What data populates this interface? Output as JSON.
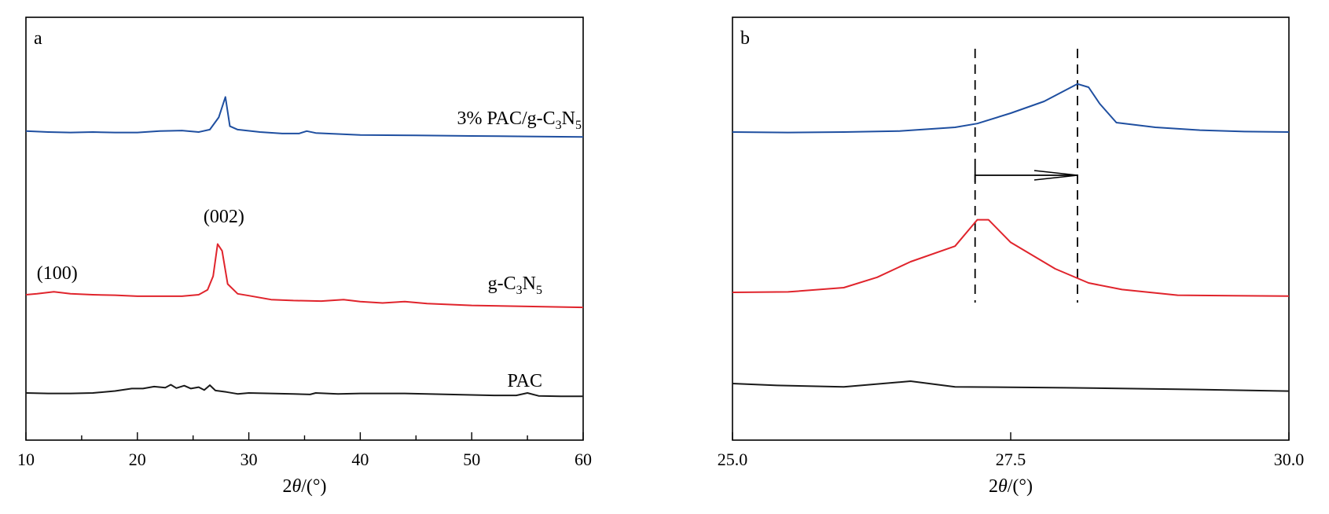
{
  "chart_data": [
    {
      "type": "line",
      "panel_label": "a",
      "xlabel": "2θ/(°)",
      "xlim": [
        10,
        60
      ],
      "xticks": [
        "10",
        "20",
        "30",
        "40",
        "50",
        "60"
      ],
      "yaxis_ticks": "none",
      "grid": false,
      "series": [
        {
          "name": "3% PAC/g-C3N5",
          "label_parts": [
            "3% PAC/g-C",
            "3",
            "N",
            "5"
          ],
          "color": "#1f4fa0",
          "offset": 2,
          "points": [
            [
              10,
              0.02
            ],
            [
              12,
              0.0
            ],
            [
              14,
              -0.01
            ],
            [
              16,
              0.0
            ],
            [
              18,
              -0.01
            ],
            [
              20,
              -0.01
            ],
            [
              22,
              0.02
            ],
            [
              24,
              0.03
            ],
            [
              25.5,
              0.0
            ],
            [
              26.5,
              0.05
            ],
            [
              27.3,
              0.3
            ],
            [
              27.9,
              0.72
            ],
            [
              28.3,
              0.12
            ],
            [
              29,
              0.05
            ],
            [
              31,
              0.0
            ],
            [
              33,
              -0.03
            ],
            [
              34.5,
              -0.03
            ],
            [
              35.2,
              0.02
            ],
            [
              36,
              -0.02
            ],
            [
              40,
              -0.06
            ],
            [
              45,
              -0.07
            ],
            [
              50,
              -0.08
            ],
            [
              55,
              -0.09
            ],
            [
              60,
              -0.1
            ]
          ]
        },
        {
          "name": "g-C3N5",
          "label_parts": [
            "g-C",
            "3",
            "N",
            "5"
          ],
          "color": "#e0242c",
          "offset": 1,
          "points": [
            [
              10,
              0.0
            ],
            [
              11,
              0.02
            ],
            [
              12.5,
              0.06
            ],
            [
              14,
              0.02
            ],
            [
              16,
              0.0
            ],
            [
              18,
              -0.01
            ],
            [
              20,
              -0.03
            ],
            [
              22,
              -0.03
            ],
            [
              24,
              -0.03
            ],
            [
              25.5,
              0.0
            ],
            [
              26.3,
              0.1
            ],
            [
              26.8,
              0.38
            ],
            [
              27.2,
              1.04
            ],
            [
              27.6,
              0.9
            ],
            [
              28.1,
              0.22
            ],
            [
              29,
              0.02
            ],
            [
              30,
              -0.02
            ],
            [
              32,
              -0.1
            ],
            [
              34,
              -0.12
            ],
            [
              36.5,
              -0.13
            ],
            [
              38.5,
              -0.1
            ],
            [
              40,
              -0.14
            ],
            [
              42,
              -0.17
            ],
            [
              44,
              -0.14
            ],
            [
              46,
              -0.18
            ],
            [
              50,
              -0.22
            ],
            [
              55,
              -0.24
            ],
            [
              60,
              -0.26
            ]
          ]
        },
        {
          "name": "PAC",
          "label_parts": [
            "PAC"
          ],
          "color": "#1a1a1a",
          "offset": 0,
          "points": [
            [
              10,
              0.0
            ],
            [
              12,
              -0.01
            ],
            [
              14,
              -0.01
            ],
            [
              16,
              0.0
            ],
            [
              18,
              0.04
            ],
            [
              19.5,
              0.09
            ],
            [
              20.5,
              0.09
            ],
            [
              21.5,
              0.13
            ],
            [
              22.5,
              0.11
            ],
            [
              23,
              0.17
            ],
            [
              23.5,
              0.1
            ],
            [
              24.2,
              0.15
            ],
            [
              24.8,
              0.09
            ],
            [
              25.5,
              0.12
            ],
            [
              26,
              0.06
            ],
            [
              26.5,
              0.16
            ],
            [
              27,
              0.05
            ],
            [
              28,
              0.02
            ],
            [
              29,
              -0.02
            ],
            [
              30,
              0.0
            ],
            [
              32,
              -0.01
            ],
            [
              34,
              -0.02
            ],
            [
              35.5,
              -0.03
            ],
            [
              36,
              0.0
            ],
            [
              38,
              -0.02
            ],
            [
              40,
              -0.01
            ],
            [
              42,
              -0.01
            ],
            [
              44,
              -0.01
            ],
            [
              46,
              -0.02
            ],
            [
              48,
              -0.03
            ],
            [
              50,
              -0.04
            ],
            [
              52,
              -0.05
            ],
            [
              54,
              -0.05
            ],
            [
              55,
              0.0
            ],
            [
              56,
              -0.06
            ],
            [
              58,
              -0.07
            ],
            [
              60,
              -0.07
            ]
          ]
        }
      ],
      "annotations": [
        {
          "text": "(100)",
          "x": 12.8,
          "series": "g-C3N5"
        },
        {
          "text": "(002)",
          "x": 27.2,
          "series": "g-C3N5"
        }
      ]
    },
    {
      "type": "line",
      "panel_label": "b",
      "xlabel": "2θ/(°)",
      "xlim": [
        25.0,
        30.0
      ],
      "xticks": [
        "25.0",
        "27.5",
        "30.0"
      ],
      "yaxis_ticks": "none",
      "grid": false,
      "guides_x": [
        27.18,
        28.1
      ],
      "shift_arrow": {
        "from": 27.18,
        "to": 28.1
      },
      "series": [
        {
          "name": "3% PAC/g-C3N5",
          "color": "#1f4fa0",
          "offset": 2,
          "points": [
            [
              25.0,
              0.0
            ],
            [
              25.5,
              -0.01
            ],
            [
              26.0,
              0.0
            ],
            [
              26.5,
              0.02
            ],
            [
              27.0,
              0.1
            ],
            [
              27.2,
              0.18
            ],
            [
              27.5,
              0.4
            ],
            [
              27.8,
              0.65
            ],
            [
              28.1,
              1.02
            ],
            [
              28.2,
              0.95
            ],
            [
              28.3,
              0.6
            ],
            [
              28.45,
              0.2
            ],
            [
              28.8,
              0.1
            ],
            [
              29.2,
              0.04
            ],
            [
              29.6,
              0.01
            ],
            [
              30.0,
              0.0
            ]
          ]
        },
        {
          "name": "g-C3N5",
          "color": "#e0242c",
          "offset": 1,
          "points": [
            [
              25.0,
              0.0
            ],
            [
              25.5,
              0.01
            ],
            [
              26.0,
              0.1
            ],
            [
              26.3,
              0.32
            ],
            [
              26.6,
              0.65
            ],
            [
              27.0,
              0.98
            ],
            [
              27.2,
              1.54
            ],
            [
              27.3,
              1.54
            ],
            [
              27.5,
              1.06
            ],
            [
              27.9,
              0.5
            ],
            [
              28.2,
              0.2
            ],
            [
              28.5,
              0.06
            ],
            [
              29.0,
              -0.06
            ],
            [
              29.5,
              -0.07
            ],
            [
              30.0,
              -0.08
            ]
          ]
        },
        {
          "name": "PAC",
          "color": "#1a1a1a",
          "offset": 0,
          "points": [
            [
              25.0,
              0.0
            ],
            [
              25.4,
              -0.04
            ],
            [
              26.0,
              -0.07
            ],
            [
              26.6,
              0.05
            ],
            [
              27.0,
              -0.07
            ],
            [
              28.0,
              -0.09
            ],
            [
              29.0,
              -0.12
            ],
            [
              30.0,
              -0.16
            ]
          ]
        }
      ]
    }
  ]
}
